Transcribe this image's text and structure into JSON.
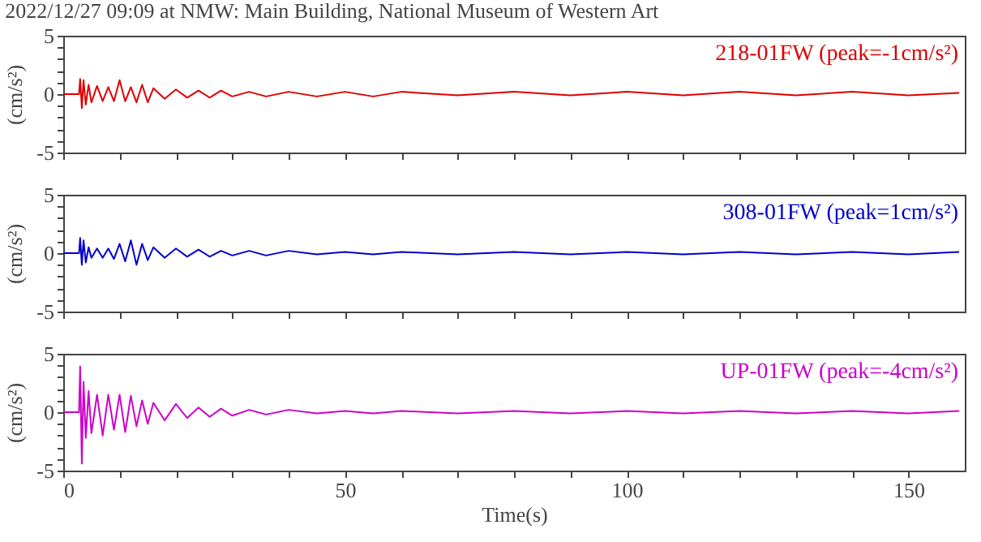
{
  "chart_data": [
    {
      "type": "line",
      "title": "2022/12/27 09:09 at NMW: Main Building, National Museum of Western Art",
      "ylabel": "(cm/s²)",
      "annotations": [
        "218-01FW (peak=-1cm/s²)"
      ],
      "tick_labels": "y",
      "x": [
        0,
        2.8,
        3.0,
        3.3,
        3.6,
        4.0,
        4.5,
        5.0,
        6.0,
        7.0,
        8.0,
        9.0,
        10,
        11,
        12,
        13,
        14,
        15,
        16,
        18,
        20,
        22,
        24,
        26,
        28,
        30,
        33,
        36,
        40,
        45,
        50,
        55,
        60,
        70,
        80,
        90,
        100,
        110,
        120,
        130,
        140,
        150,
        159
      ],
      "series": [
        {
          "color": "#dd0000",
          "values": [
            0,
            0,
            1.3,
            -1.2,
            1.2,
            -0.9,
            0.8,
            -0.7,
            0.7,
            -0.6,
            0.6,
            -0.6,
            1.2,
            -0.6,
            0.6,
            -0.7,
            0.8,
            -0.7,
            0.5,
            -0.4,
            0.4,
            -0.3,
            0.3,
            -0.3,
            0.3,
            -0.2,
            0.2,
            -0.2,
            0.2,
            -0.2,
            0.2,
            -0.2,
            0.2,
            -0.1,
            0.2,
            -0.1,
            0.2,
            -0.1,
            0.2,
            -0.1,
            0.2,
            -0.1,
            0.1
          ]
        }
      ],
      "xlim": [
        0,
        160
      ],
      "xticks": [
        0,
        {
          "value": 10,
          "label": null
        },
        {
          "value": 20,
          "label": null
        },
        {
          "value": 30,
          "label": null
        },
        {
          "value": 40,
          "label": null
        },
        50,
        {
          "value": 60,
          "label": null
        },
        {
          "value": 70,
          "label": null
        },
        {
          "value": 80,
          "label": null
        },
        {
          "value": 90,
          "label": null
        },
        100,
        {
          "value": 110,
          "label": null
        },
        {
          "value": 120,
          "label": null
        },
        {
          "value": 130,
          "label": null
        },
        {
          "value": 140,
          "label": null
        },
        150
      ],
      "ylim": [
        -5,
        5
      ],
      "yticks": [
        -5,
        {
          "value": -4,
          "label": null
        },
        {
          "value": -3,
          "label": null
        },
        {
          "value": -2,
          "label": null
        },
        {
          "value": -1,
          "label": null
        },
        0,
        {
          "value": 1,
          "label": null
        },
        {
          "value": 2,
          "label": null
        },
        {
          "value": 3,
          "label": null
        },
        {
          "value": 4,
          "label": null
        },
        5
      ]
    },
    {
      "type": "line",
      "ylabel": "(cm/s²)",
      "annotations": [
        "308-01FW (peak=1cm/s²)"
      ],
      "tick_labels": "y",
      "x": [
        0,
        2.8,
        3.0,
        3.3,
        3.6,
        4.0,
        4.5,
        5.0,
        6.0,
        7.0,
        8.0,
        9.0,
        10,
        11,
        12,
        13,
        14,
        15,
        16,
        18,
        20,
        22,
        24,
        26,
        28,
        30,
        33,
        36,
        40,
        45,
        50,
        55,
        60,
        70,
        80,
        90,
        100,
        110,
        120,
        130,
        140,
        150,
        159
      ],
      "series": [
        {
          "color": "#0000cc",
          "values": [
            0,
            0,
            1.3,
            -1.0,
            1.1,
            -0.8,
            0.5,
            -0.4,
            0.4,
            -0.4,
            0.4,
            -0.5,
            0.8,
            -0.7,
            1.1,
            -1.0,
            0.8,
            -0.6,
            0.5,
            -0.4,
            0.4,
            -0.3,
            0.3,
            -0.3,
            0.2,
            -0.2,
            0.2,
            -0.2,
            0.2,
            -0.1,
            0.1,
            -0.1,
            0.1,
            -0.1,
            0.1,
            -0.1,
            0.1,
            -0.1,
            0.1,
            -0.1,
            0.1,
            -0.1,
            0.1
          ]
        }
      ],
      "xlim": [
        0,
        160
      ],
      "xticks": [
        0,
        {
          "value": 10,
          "label": null
        },
        {
          "value": 20,
          "label": null
        },
        {
          "value": 30,
          "label": null
        },
        {
          "value": 40,
          "label": null
        },
        50,
        {
          "value": 60,
          "label": null
        },
        {
          "value": 70,
          "label": null
        },
        {
          "value": 80,
          "label": null
        },
        {
          "value": 90,
          "label": null
        },
        100,
        {
          "value": 110,
          "label": null
        },
        {
          "value": 120,
          "label": null
        },
        {
          "value": 130,
          "label": null
        },
        {
          "value": 140,
          "label": null
        },
        150
      ],
      "ylim": [
        -5,
        5
      ],
      "yticks": [
        -5,
        {
          "value": -4,
          "label": null
        },
        {
          "value": -3,
          "label": null
        },
        {
          "value": -2,
          "label": null
        },
        {
          "value": -1,
          "label": null
        },
        0,
        {
          "value": 1,
          "label": null
        },
        {
          "value": 2,
          "label": null
        },
        {
          "value": 3,
          "label": null
        },
        {
          "value": 4,
          "label": null
        },
        5
      ]
    },
    {
      "type": "line",
      "ylabel": "(cm/s²)",
      "xlabel": "Time(s)",
      "annotations": [
        "UP-01FW (peak=-4cm/s²)"
      ],
      "x": [
        0,
        2.8,
        3.0,
        3.3,
        3.6,
        4.0,
        4.5,
        5.0,
        6.0,
        7.0,
        8.0,
        9.0,
        10,
        11,
        12,
        13,
        14,
        15,
        16,
        18,
        20,
        22,
        24,
        26,
        28,
        30,
        33,
        36,
        40,
        45,
        50,
        55,
        60,
        70,
        80,
        90,
        100,
        110,
        120,
        130,
        140,
        150,
        159
      ],
      "series": [
        {
          "color": "#cc00cc",
          "values": [
            0,
            0,
            3.9,
            -4.4,
            2.6,
            -2.2,
            1.8,
            -1.8,
            1.5,
            -2.0,
            1.5,
            -1.5,
            1.5,
            -1.7,
            1.4,
            -1.2,
            1.0,
            -1.0,
            0.8,
            -0.7,
            0.7,
            -0.5,
            0.4,
            -0.4,
            0.3,
            -0.3,
            0.2,
            -0.2,
            0.2,
            -0.1,
            0.1,
            -0.1,
            0.1,
            -0.1,
            0.1,
            -0.1,
            0.1,
            -0.1,
            0.1,
            -0.1,
            0.1,
            -0.1,
            0.1
          ]
        }
      ],
      "xlim": [
        0,
        160
      ],
      "xticks": [
        0,
        {
          "value": 10,
          "label": null
        },
        {
          "value": 20,
          "label": null
        },
        {
          "value": 30,
          "label": null
        },
        {
          "value": 40,
          "label": null
        },
        50,
        {
          "value": 60,
          "label": null
        },
        {
          "value": 70,
          "label": null
        },
        {
          "value": 80,
          "label": null
        },
        {
          "value": 90,
          "label": null
        },
        100,
        {
          "value": 110,
          "label": null
        },
        {
          "value": 120,
          "label": null
        },
        {
          "value": 130,
          "label": null
        },
        {
          "value": 140,
          "label": null
        },
        150
      ],
      "ylim": [
        -5,
        5
      ],
      "yticks": [
        -5,
        {
          "value": -4,
          "label": null
        },
        {
          "value": -3,
          "label": null
        },
        {
          "value": -2,
          "label": null
        },
        {
          "value": -1,
          "label": null
        },
        0,
        {
          "value": 1,
          "label": null
        },
        {
          "value": 2,
          "label": null
        },
        {
          "value": 3,
          "label": null
        },
        {
          "value": 4,
          "label": null
        },
        5
      ]
    }
  ]
}
